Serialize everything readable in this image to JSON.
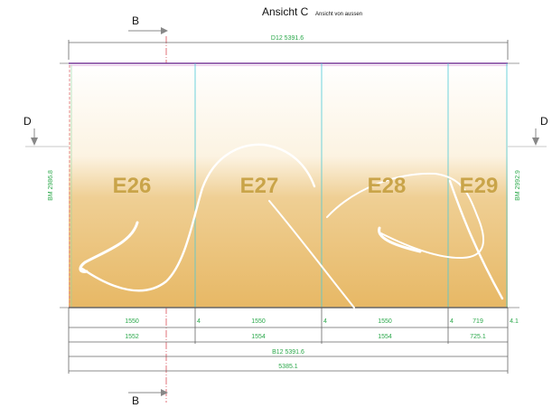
{
  "title": {
    "main": "Ansicht C",
    "sub": "Ansicht von aussen"
  },
  "section_markers": {
    "b_top": "B",
    "b_bottom": "B",
    "d_left": "D",
    "d_right": "D"
  },
  "top_dimension": "D12 5391.6",
  "side_dimensions": {
    "left": "BM 2986.8",
    "right": "BM 2992.9"
  },
  "panels": [
    {
      "label": "E26"
    },
    {
      "label": "E27"
    },
    {
      "label": "E28"
    },
    {
      "label": "E29"
    }
  ],
  "dimension_rows": {
    "row1": [
      "1550",
      "4",
      "1550",
      "4",
      "1550",
      "4",
      "719",
      "4.1"
    ],
    "row2": [
      "1552",
      "1554",
      "1554",
      "725.1"
    ],
    "row3": "B12 5391.6",
    "row4": "5385.1"
  },
  "colors": {
    "gradient_top": "#ffffff",
    "gradient_bottom": "#e7b865",
    "dimension_green": "#2aa84a",
    "panel_label": "#c9a449",
    "frame_line": "#7a3d9a",
    "section_line": "#e0707a",
    "divider_cyan": "#4cc9d6"
  }
}
